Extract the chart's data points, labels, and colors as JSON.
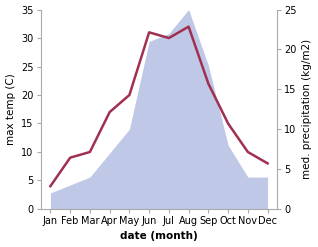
{
  "months": [
    "Jan",
    "Feb",
    "Mar",
    "Apr",
    "May",
    "Jun",
    "Jul",
    "Aug",
    "Sep",
    "Oct",
    "Nov",
    "Dec"
  ],
  "x": [
    0,
    1,
    2,
    3,
    4,
    5,
    6,
    7,
    8,
    9,
    10,
    11
  ],
  "temperature": [
    4,
    9,
    10,
    17,
    20,
    31,
    30,
    32,
    22,
    15,
    10,
    8
  ],
  "precipitation": [
    2,
    3,
    4,
    7,
    10,
    21,
    22,
    25,
    18,
    8,
    4,
    4
  ],
  "temp_color": "#a03050",
  "precip_color": "#c0c8e8",
  "ylabel_left": "max temp (C)",
  "ylabel_right": "med. precipitation (kg/m2)",
  "xlabel": "date (month)",
  "ylim_left": [
    0,
    35
  ],
  "ylim_right": [
    0,
    25
  ],
  "yticks_left": [
    0,
    5,
    10,
    15,
    20,
    25,
    30,
    35
  ],
  "yticks_right": [
    0,
    5,
    10,
    15,
    20,
    25
  ],
  "bg_color": "#ffffff",
  "temp_linewidth": 1.8,
  "label_fontsize": 7.5,
  "tick_fontsize": 7
}
